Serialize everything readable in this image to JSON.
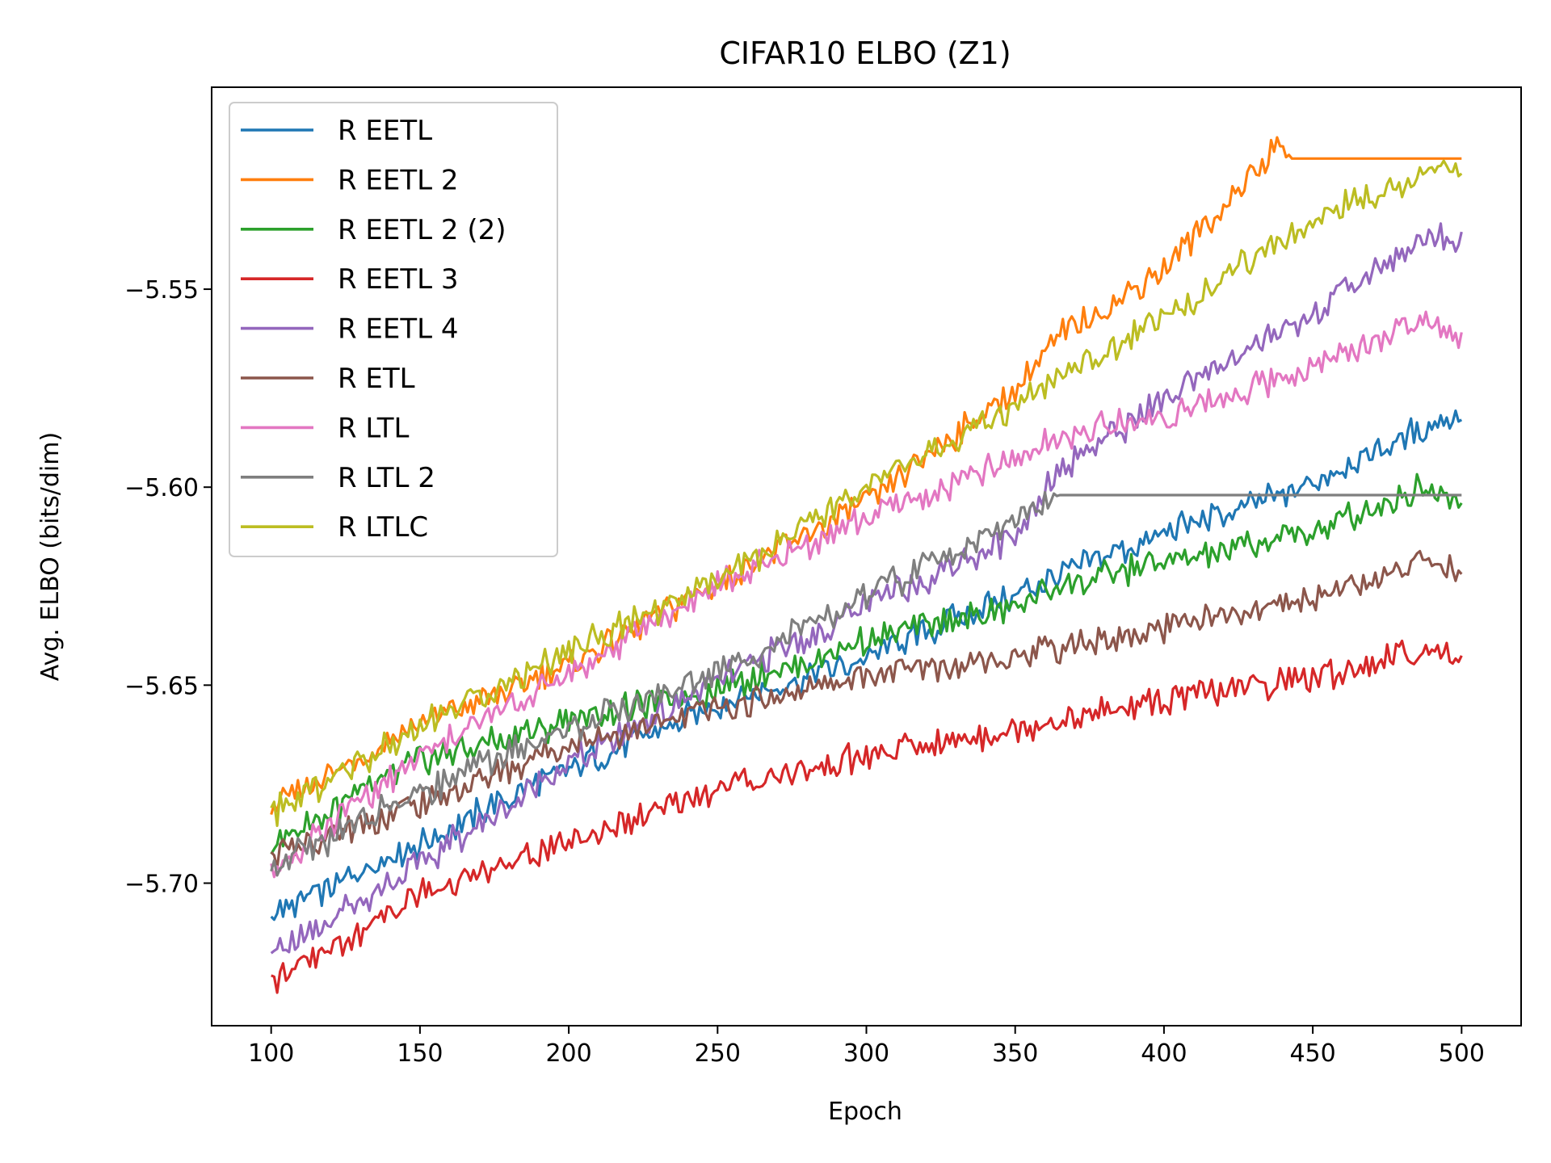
{
  "chart_data": {
    "type": "line",
    "title": "CIFAR10 ELBO (Z1)",
    "xlabel": "Epoch",
    "ylabel": "Avg. ELBO (bits/dim)",
    "xlim": [
      80,
      520
    ],
    "ylim": [
      -5.736,
      -5.499
    ],
    "xticks": [
      100,
      150,
      200,
      250,
      300,
      350,
      400,
      450,
      500
    ],
    "yticks": [
      -5.7,
      -5.65,
      -5.6,
      -5.55
    ],
    "ytick_labels": [
      "−5.70",
      "−5.65",
      "−5.60",
      "−5.55"
    ],
    "grid": false,
    "legend_position": "upper-left",
    "series": [
      {
        "name": "R EETL",
        "color": "#1f77b4",
        "points": [
          [
            100,
            -5.708
          ],
          [
            150,
            -5.69
          ],
          [
            200,
            -5.671
          ],
          [
            250,
            -5.655
          ],
          [
            300,
            -5.643
          ],
          [
            350,
            -5.627
          ],
          [
            365,
            -5.622
          ],
          [
            400,
            -5.612
          ],
          [
            450,
            -5.599
          ],
          [
            487,
            -5.585
          ],
          [
            500,
            -5.582
          ]
        ]
      },
      {
        "name": "R EETL 2",
        "color": "#ff7f0e",
        "points": [
          [
            100,
            -5.681
          ],
          [
            150,
            -5.66
          ],
          [
            200,
            -5.645
          ],
          [
            250,
            -5.624
          ],
          [
            300,
            -5.604
          ],
          [
            350,
            -5.575
          ],
          [
            365,
            -5.562
          ],
          [
            400,
            -5.545
          ],
          [
            440,
            -5.513
          ],
          [
            443,
            -5.517
          ],
          [
            500,
            -5.517
          ]
        ]
      },
      {
        "name": "R EETL 2 (2)",
        "color": "#2ca02c",
        "points": [
          [
            100,
            -5.69
          ],
          [
            150,
            -5.669
          ],
          [
            200,
            -5.659
          ],
          [
            250,
            -5.651
          ],
          [
            300,
            -5.639
          ],
          [
            350,
            -5.63
          ],
          [
            365,
            -5.625
          ],
          [
            400,
            -5.619
          ],
          [
            450,
            -5.611
          ],
          [
            487,
            -5.6
          ],
          [
            500,
            -5.603
          ]
        ]
      },
      {
        "name": "R EETL 3",
        "color": "#d62728",
        "points": [
          [
            100,
            -5.725
          ],
          [
            150,
            -5.703
          ],
          [
            200,
            -5.69
          ],
          [
            250,
            -5.676
          ],
          [
            300,
            -5.668
          ],
          [
            350,
            -5.661
          ],
          [
            365,
            -5.659
          ],
          [
            400,
            -5.654
          ],
          [
            450,
            -5.648
          ],
          [
            487,
            -5.641
          ],
          [
            500,
            -5.642
          ]
        ]
      },
      {
        "name": "R EETL 4",
        "color": "#9467bd",
        "points": [
          [
            100,
            -5.718
          ],
          [
            150,
            -5.695
          ],
          [
            200,
            -5.67
          ],
          [
            250,
            -5.649
          ],
          [
            300,
            -5.63
          ],
          [
            350,
            -5.612
          ],
          [
            365,
            -5.595
          ],
          [
            400,
            -5.578
          ],
          [
            450,
            -5.556
          ],
          [
            487,
            -5.537
          ],
          [
            500,
            -5.537
          ]
        ]
      },
      {
        "name": "R ETL",
        "color": "#8c564b",
        "points": [
          [
            100,
            -5.693
          ],
          [
            150,
            -5.68
          ],
          [
            200,
            -5.665
          ],
          [
            250,
            -5.656
          ],
          [
            300,
            -5.648
          ],
          [
            350,
            -5.642
          ],
          [
            365,
            -5.641
          ],
          [
            400,
            -5.636
          ],
          [
            450,
            -5.628
          ],
          [
            487,
            -5.619
          ],
          [
            500,
            -5.621
          ]
        ]
      },
      {
        "name": "R LTL",
        "color": "#e377c2",
        "points": [
          [
            100,
            -5.697
          ],
          [
            150,
            -5.668
          ],
          [
            200,
            -5.647
          ],
          [
            250,
            -5.625
          ],
          [
            300,
            -5.608
          ],
          [
            350,
            -5.593
          ],
          [
            365,
            -5.587
          ],
          [
            400,
            -5.582
          ],
          [
            450,
            -5.57
          ],
          [
            487,
            -5.557
          ],
          [
            500,
            -5.563
          ]
        ]
      },
      {
        "name": "R LTL 2",
        "color": "#7f7f7f",
        "points": [
          [
            100,
            -5.696
          ],
          [
            150,
            -5.677
          ],
          [
            200,
            -5.661
          ],
          [
            250,
            -5.647
          ],
          [
            300,
            -5.628
          ],
          [
            350,
            -5.608
          ],
          [
            365,
            -5.602
          ],
          [
            500,
            -5.602
          ]
        ]
      },
      {
        "name": "R LTLC",
        "color": "#bcbd22",
        "points": [
          [
            100,
            -5.683
          ],
          [
            150,
            -5.66
          ],
          [
            200,
            -5.641
          ],
          [
            250,
            -5.624
          ],
          [
            300,
            -5.6
          ],
          [
            350,
            -5.58
          ],
          [
            365,
            -5.573
          ],
          [
            400,
            -5.557
          ],
          [
            450,
            -5.533
          ],
          [
            487,
            -5.521
          ],
          [
            500,
            -5.518
          ]
        ]
      }
    ]
  }
}
